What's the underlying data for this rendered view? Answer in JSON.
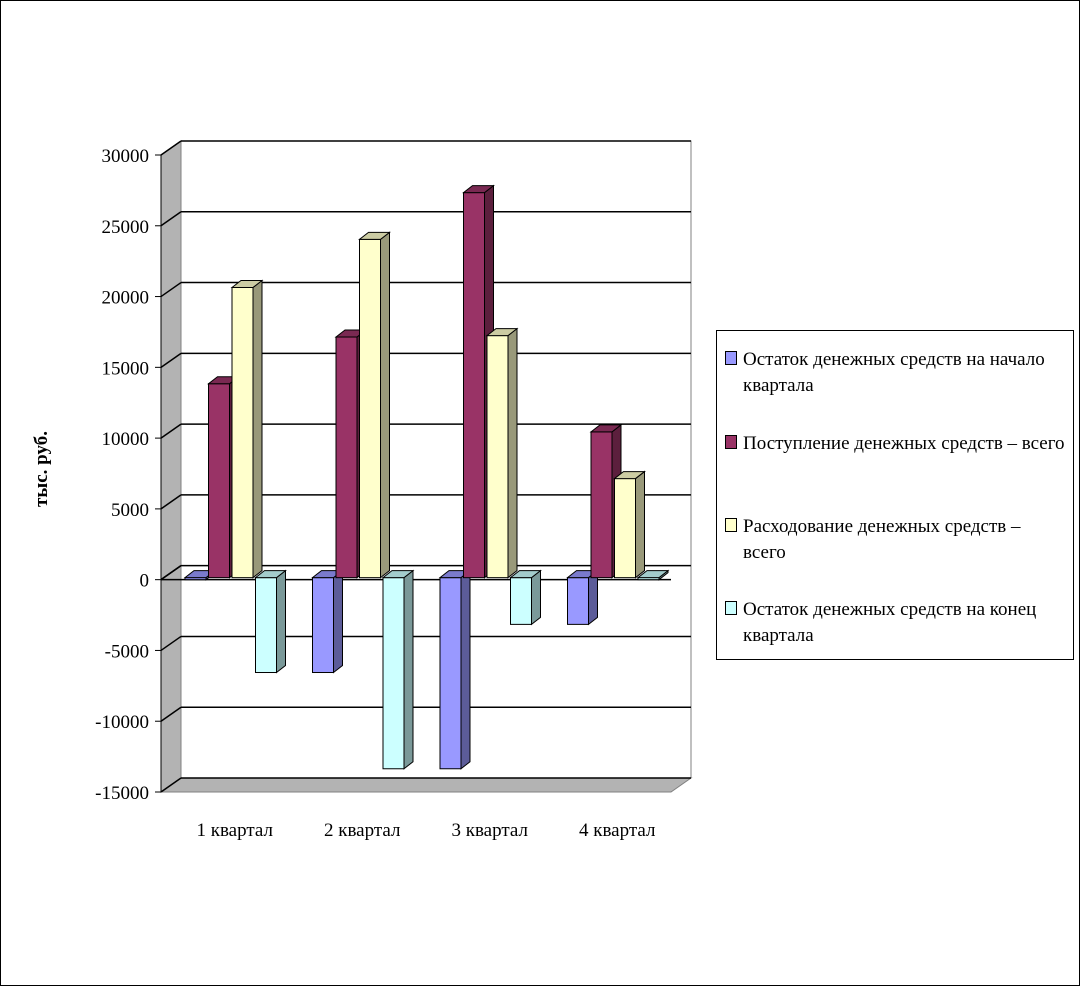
{
  "chart_data": {
    "type": "bar",
    "title": "",
    "xlabel": "",
    "ylabel": "тыс. руб.",
    "ylim": [
      -15000,
      30000
    ],
    "yticks": [
      30000,
      25000,
      20000,
      15000,
      10000,
      5000,
      0,
      -5000,
      -10000,
      -15000
    ],
    "categories": [
      "1 квартал",
      "2 квартал",
      "3 квартал",
      "4 квартал"
    ],
    "grid": true,
    "legend_position": "right",
    "three_d": true,
    "series": [
      {
        "name": "Остаток денежных средств на начало квартала",
        "color": "#9999ff",
        "values": [
          0,
          -6700,
          -13500,
          -3300
        ]
      },
      {
        "name": "Поступление денежных средств – всего",
        "color": "#993366",
        "values": [
          13700,
          17000,
          27200,
          10300
        ]
      },
      {
        "name": "Расходование денежных средств – всего",
        "color": "#ffffcc",
        "values": [
          20500,
          23900,
          17100,
          7000
        ]
      },
      {
        "name": "Остаток денежных средств на конец квартала",
        "color": "#ccffff",
        "values": [
          -6700,
          -13500,
          -3300,
          0
        ]
      }
    ]
  }
}
